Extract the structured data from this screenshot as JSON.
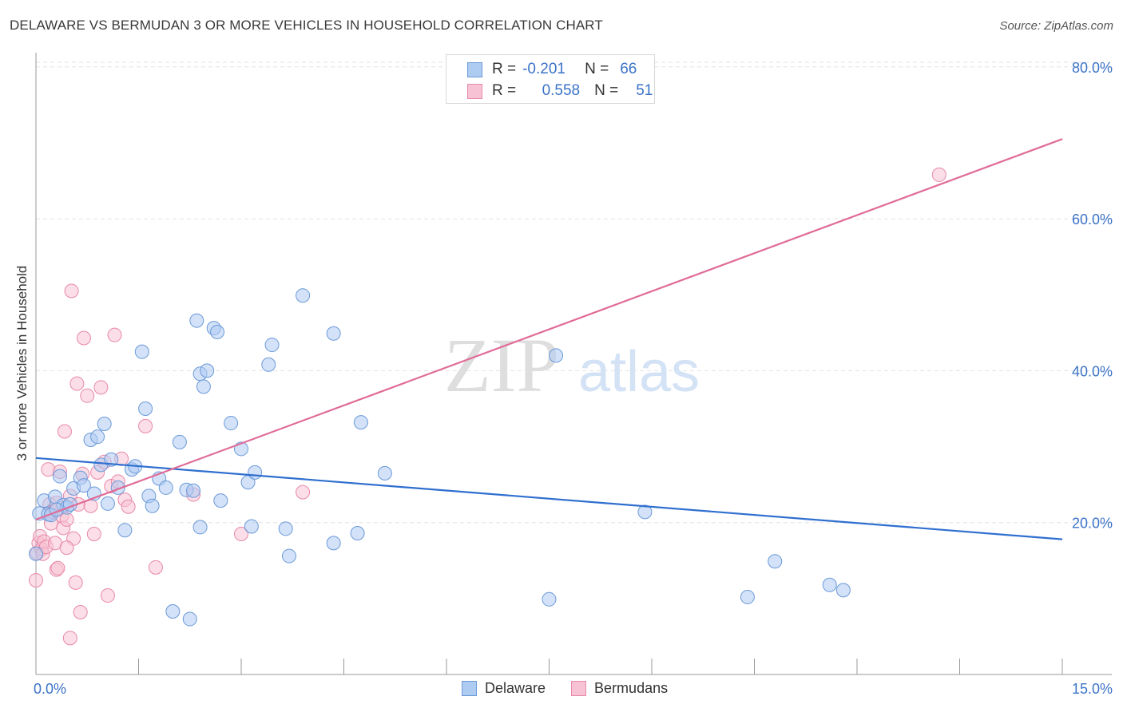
{
  "title": "DELAWARE VS BERMUDAN 3 OR MORE VEHICLES IN HOUSEHOLD CORRELATION CHART",
  "source": "Source: ZipAtlas.com",
  "watermark": {
    "zip": "ZIP",
    "atlas": "atlas"
  },
  "legend_top": {
    "rows": [
      {
        "r_label": "R =",
        "r_value": "-0.201",
        "n_label": "N =",
        "n_value": "66"
      },
      {
        "r_label": "R =",
        "r_value": "0.558",
        "n_label": "N =",
        "n_value": "51"
      }
    ]
  },
  "colors": {
    "delaware_fill": "#aecbf2",
    "delaware_stroke": "#6b9ad8",
    "delaware_line": "#2f6fcf",
    "bermudans_fill": "#f7c3d4",
    "bermudans_stroke": "#e889a8",
    "bermudans_line": "#e06b97",
    "tick_label": "#3b73c7",
    "grid": "#e3e3e3"
  },
  "chart_data": {
    "type": "scatter",
    "title": "DELAWARE VS BERMUDAN 3 OR MORE VEHICLES IN HOUSEHOLD CORRELATION CHART",
    "xlabel": "",
    "ylabel": "3 or more Vehicles in Household",
    "xlim": [
      0,
      15
    ],
    "ylim": [
      0,
      82
    ],
    "x_tick_labels": [
      "0.0%",
      "15.0%"
    ],
    "y_ticks": [
      20,
      40,
      60,
      80
    ],
    "y_tick_labels": [
      "20.0%",
      "40.0%",
      "60.0%",
      "80.0%"
    ],
    "grid": true,
    "legend_placement": "bottom-center",
    "series": [
      {
        "name": "Delaware",
        "stats": {
          "R": -0.201,
          "N": 66
        },
        "trend": {
          "x": [
            0,
            15
          ],
          "y": [
            28.5,
            17.8
          ]
        },
        "points": [
          [
            0.0,
            15.9
          ],
          [
            0.05,
            21.2
          ],
          [
            0.12,
            22.9
          ],
          [
            0.18,
            21.1
          ],
          [
            0.22,
            21.0
          ],
          [
            0.28,
            23.4
          ],
          [
            0.35,
            26.1
          ],
          [
            0.4,
            22.3
          ],
          [
            0.45,
            22.0
          ],
          [
            0.55,
            24.5
          ],
          [
            0.65,
            25.9
          ],
          [
            0.7,
            24.9
          ],
          [
            0.8,
            30.9
          ],
          [
            0.85,
            23.8
          ],
          [
            0.9,
            31.3
          ],
          [
            0.95,
            27.6
          ],
          [
            1.0,
            33.0
          ],
          [
            1.05,
            22.5
          ],
          [
            1.1,
            28.3
          ],
          [
            1.2,
            24.6
          ],
          [
            1.3,
            19.0
          ],
          [
            1.4,
            27.0
          ],
          [
            1.45,
            27.4
          ],
          [
            1.55,
            42.5
          ],
          [
            1.6,
            35.0
          ],
          [
            1.65,
            23.5
          ],
          [
            1.7,
            22.2
          ],
          [
            1.8,
            25.8
          ],
          [
            1.9,
            24.6
          ],
          [
            2.0,
            8.3
          ],
          [
            2.1,
            30.6
          ],
          [
            2.2,
            24.3
          ],
          [
            2.3,
            24.2
          ],
          [
            2.25,
            7.3
          ],
          [
            2.35,
            46.6
          ],
          [
            2.4,
            19.4
          ],
          [
            2.4,
            39.6
          ],
          [
            2.45,
            37.9
          ],
          [
            2.5,
            40.0
          ],
          [
            2.6,
            45.6
          ],
          [
            2.65,
            45.1
          ],
          [
            2.7,
            22.9
          ],
          [
            2.85,
            33.1
          ],
          [
            3.0,
            29.7
          ],
          [
            3.1,
            25.3
          ],
          [
            3.15,
            19.5
          ],
          [
            3.2,
            26.6
          ],
          [
            3.4,
            40.8
          ],
          [
            3.45,
            43.4
          ],
          [
            3.65,
            19.2
          ],
          [
            3.7,
            15.6
          ],
          [
            3.9,
            49.9
          ],
          [
            4.35,
            17.3
          ],
          [
            4.35,
            44.9
          ],
          [
            4.7,
            18.6
          ],
          [
            4.75,
            33.2
          ],
          [
            5.1,
            26.5
          ],
          [
            7.5,
            9.9
          ],
          [
            7.6,
            42.0
          ],
          [
            8.9,
            21.4
          ],
          [
            10.4,
            10.2
          ],
          [
            10.8,
            14.9
          ],
          [
            11.6,
            11.8
          ],
          [
            11.8,
            11.1
          ],
          [
            0.3,
            21.7
          ],
          [
            0.5,
            22.4
          ]
        ]
      },
      {
        "name": "Bermudans",
        "stats": {
          "R": 0.558,
          "N": 51
        },
        "trend": {
          "x": [
            0,
            15
          ],
          "y": [
            20.4,
            70.5
          ]
        },
        "points": [
          [
            0.0,
            12.4
          ],
          [
            0.02,
            16.0
          ],
          [
            0.04,
            17.3
          ],
          [
            0.06,
            18.2
          ],
          [
            0.08,
            16.5
          ],
          [
            0.1,
            15.9
          ],
          [
            0.12,
            17.5
          ],
          [
            0.15,
            16.8
          ],
          [
            0.18,
            27.0
          ],
          [
            0.2,
            22.4
          ],
          [
            0.22,
            19.9
          ],
          [
            0.25,
            21.4
          ],
          [
            0.28,
            17.3
          ],
          [
            0.3,
            13.8
          ],
          [
            0.32,
            14.0
          ],
          [
            0.35,
            26.7
          ],
          [
            0.38,
            20.9
          ],
          [
            0.4,
            19.3
          ],
          [
            0.42,
            32.0
          ],
          [
            0.45,
            20.4
          ],
          [
            0.5,
            4.8
          ],
          [
            0.5,
            23.5
          ],
          [
            0.52,
            50.5
          ],
          [
            0.55,
            17.9
          ],
          [
            0.58,
            12.1
          ],
          [
            0.6,
            38.3
          ],
          [
            0.62,
            22.4
          ],
          [
            0.65,
            8.2
          ],
          [
            0.7,
            44.3
          ],
          [
            0.75,
            36.7
          ],
          [
            0.8,
            22.2
          ],
          [
            0.85,
            18.5
          ],
          [
            0.9,
            26.6
          ],
          [
            0.95,
            37.8
          ],
          [
            1.0,
            28.0
          ],
          [
            1.05,
            10.4
          ],
          [
            1.1,
            24.8
          ],
          [
            1.15,
            44.7
          ],
          [
            1.2,
            25.4
          ],
          [
            1.25,
            28.4
          ],
          [
            1.3,
            23.0
          ],
          [
            1.35,
            22.1
          ],
          [
            1.6,
            32.7
          ],
          [
            1.75,
            14.1
          ],
          [
            2.3,
            23.7
          ],
          [
            3.0,
            18.5
          ],
          [
            3.9,
            24.0
          ],
          [
            13.2,
            65.8
          ],
          [
            0.45,
            16.7
          ],
          [
            0.68,
            26.4
          ],
          [
            0.3,
            22.6
          ]
        ]
      }
    ]
  },
  "bottom_legend": {
    "items": [
      "Delaware",
      "Bermudans"
    ]
  }
}
